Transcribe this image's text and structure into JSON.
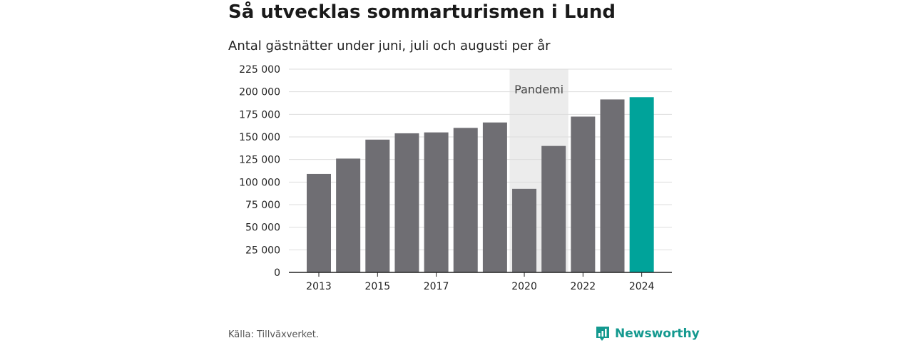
{
  "title": "Så utvecklas sommarturismen i Lund",
  "subtitle": "Antal gästnätter under juni, juli och augusti per år",
  "source": "Källa: Tillväxverket.",
  "brand": {
    "name": "Newsworthy",
    "icon": "newsworthy-logo-icon",
    "color": "#14998f"
  },
  "colors": {
    "bar": "#6f6e73",
    "highlight": "#00a39a",
    "band": "#ececec",
    "grid": "#dddddd",
    "axis": "#222222"
  },
  "chart_data": {
    "type": "bar",
    "title": "Så utvecklas sommarturismen i Lund",
    "subtitle": "Antal gästnätter under juni, juli och augusti per år",
    "xlabel": "",
    "ylabel": "",
    "categories": [
      "2013",
      "2014",
      "2015",
      "2016",
      "2017",
      "2018",
      "2019",
      "2020",
      "2021",
      "2022",
      "2023",
      "2024"
    ],
    "values": [
      109000,
      126000,
      147000,
      154000,
      155000,
      160000,
      166000,
      92500,
      140000,
      172500,
      191500,
      194000
    ],
    "highlight_index": 11,
    "x_tick_labels": [
      "2013",
      "2015",
      "2017",
      "2020",
      "2022",
      "2024"
    ],
    "y_ticks": [
      0,
      25000,
      50000,
      75000,
      100000,
      125000,
      150000,
      175000,
      200000,
      225000
    ],
    "y_tick_labels": [
      "0",
      "25 000",
      "50 000",
      "75 000",
      "100 000",
      "125 000",
      "150 000",
      "175 000",
      "200 000",
      "225 000"
    ],
    "ylim": [
      0,
      225000
    ],
    "grid": true,
    "annotation": {
      "label": "Pandemi",
      "from": "2020",
      "to": "2021"
    }
  }
}
